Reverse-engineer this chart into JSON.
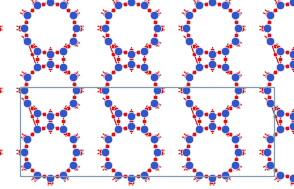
{
  "fig_width": 2.94,
  "fig_height": 1.89,
  "dpi": 100,
  "bg_color": "#ffffff",
  "blue_color": "#3355cc",
  "red_color": "#dd1111",
  "bond_color": "#cc2222",
  "blue_ms": 6.0,
  "red_ms": 3.2,
  "bond_lw": 0.9,
  "unit_cell_lw": 0.9,
  "unit_cell_color": "#8899aa"
}
